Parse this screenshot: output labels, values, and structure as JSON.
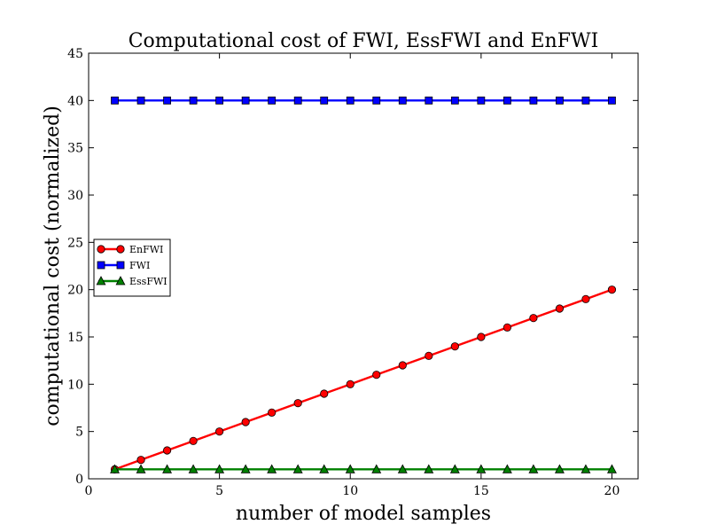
{
  "chart_data": {
    "type": "line",
    "title": "Computational cost of FWI, EssFWI and EnFWI",
    "xlabel": "number of model samples",
    "ylabel": "computational cost (normalized)",
    "xlim": [
      0,
      21
    ],
    "ylim": [
      0,
      45
    ],
    "xticks": [
      0,
      5,
      10,
      15,
      20
    ],
    "yticks": [
      0,
      5,
      10,
      15,
      20,
      25,
      30,
      35,
      40,
      45
    ],
    "grid": false,
    "legend_position": "center-left",
    "x": [
      1,
      2,
      3,
      4,
      5,
      6,
      7,
      8,
      9,
      10,
      11,
      12,
      13,
      14,
      15,
      16,
      17,
      18,
      19,
      20
    ],
    "series": [
      {
        "name": "EnFWI",
        "color": "#ff0000",
        "marker": "circle",
        "values": [
          1,
          2,
          3,
          4,
          5,
          6,
          7,
          8,
          9,
          10,
          11,
          12,
          13,
          14,
          15,
          16,
          17,
          18,
          19,
          20
        ]
      },
      {
        "name": "FWI",
        "color": "#0000ff",
        "marker": "square",
        "values": [
          40,
          40,
          40,
          40,
          40,
          40,
          40,
          40,
          40,
          40,
          40,
          40,
          40,
          40,
          40,
          40,
          40,
          40,
          40,
          40
        ]
      },
      {
        "name": "EssFWI",
        "color": "#008000",
        "marker": "triangle",
        "values": [
          1,
          1,
          1,
          1,
          1,
          1,
          1,
          1,
          1,
          1,
          1,
          1,
          1,
          1,
          1,
          1,
          1,
          1,
          1,
          1
        ]
      }
    ]
  }
}
